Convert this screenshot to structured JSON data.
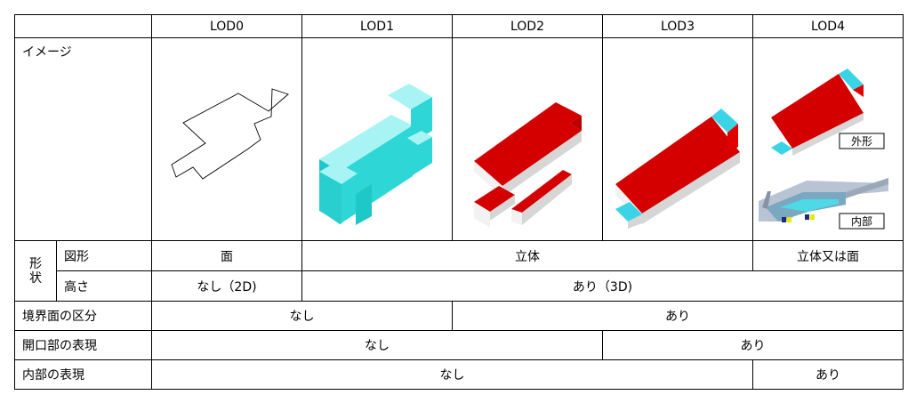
{
  "header": {
    "corner": "",
    "lod": [
      "LOD0",
      "LOD1",
      "LOD2",
      "LOD3",
      "LOD4"
    ]
  },
  "image_row": {
    "label": "イメージ",
    "lod4_outer_label": "外形",
    "lod4_inner_label": "内部"
  },
  "shape_group": {
    "label_top": "形",
    "label_bottom": "状"
  },
  "rows": {
    "figure": {
      "label": "図形",
      "lod0": "面",
      "lod1_3": "立体",
      "lod4": "立体又は面"
    },
    "height": {
      "label": "高さ",
      "lod0": "なし（2D)",
      "lod1_4": "あり（3D)"
    },
    "boundary": {
      "label": "境界面の区分",
      "lod0_1": "なし",
      "lod2_4": "あり"
    },
    "openings": {
      "label": "開口部の表現",
      "lod0_2": "なし",
      "lod3_4": "あり"
    },
    "interior": {
      "label": "内部の表現",
      "lod0_3": "なし",
      "lod4": "あり"
    }
  },
  "colors": {
    "roof_red": "#d40000",
    "wall_white": "#f2f2f2",
    "wall_grey": "#d6d6d6",
    "lod1_top": "#a8f4f4",
    "lod1_side": "#2ed6d6",
    "accent_cyan": "#3ad4e6"
  }
}
